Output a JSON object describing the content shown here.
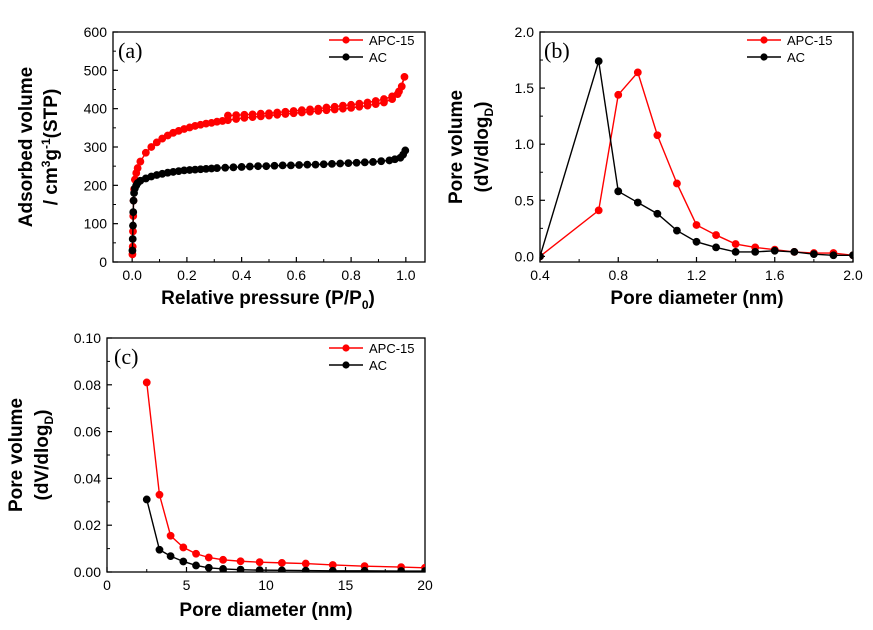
{
  "colors": {
    "APC-15": "#ff0000",
    "AC": "#000000"
  },
  "chart_data": [
    {
      "id": "a",
      "type": "line",
      "panel_label": "(a)",
      "xlabel": "Relative pressure (P/P",
      "xlabel_sub": "0",
      "xlabel_end": ")",
      "ylabel_line1": "Adsorbed volume",
      "ylabel_line2_parts": [
        "/ cm",
        "3",
        "g",
        "-1",
        "(STP)"
      ],
      "xlim": [
        -0.07,
        1.07
      ],
      "ylim": [
        0,
        600
      ],
      "xticks": [
        "0.0",
        "0.2",
        "0.4",
        "0.6",
        "0.8",
        "1.0"
      ],
      "yticks": [
        "0",
        "100",
        "200",
        "300",
        "400",
        "500",
        "600"
      ],
      "legend_position": "top-right",
      "grid": false,
      "series": [
        {
          "name": "APC-15",
          "x": [
            0.001,
            0.002,
            0.003,
            0.004,
            0.005,
            0.007,
            0.01,
            0.015,
            0.02,
            0.03,
            0.05,
            0.07,
            0.09,
            0.11,
            0.13,
            0.15,
            0.17,
            0.19,
            0.21,
            0.23,
            0.25,
            0.27,
            0.29,
            0.31,
            0.33,
            0.35,
            0.38,
            0.41,
            0.44,
            0.47,
            0.5,
            0.53,
            0.56,
            0.59,
            0.62,
            0.65,
            0.68,
            0.71,
            0.74,
            0.77,
            0.8,
            0.83,
            0.86,
            0.89,
            0.92,
            0.95,
            0.97,
            0.985,
            0.995,
            0.975,
            0.95,
            0.92,
            0.89,
            0.86,
            0.83,
            0.8,
            0.77,
            0.74,
            0.71,
            0.68,
            0.65,
            0.62,
            0.59,
            0.56,
            0.53,
            0.5,
            0.47,
            0.44,
            0.41,
            0.38,
            0.35
          ],
          "y": [
            20,
            40,
            80,
            120,
            160,
            190,
            215,
            232,
            245,
            262,
            285,
            300,
            312,
            322,
            330,
            337,
            342,
            347,
            351,
            355,
            358,
            361,
            363,
            366,
            368,
            370,
            373,
            376,
            378,
            380,
            382,
            384,
            386,
            388,
            390,
            392,
            394,
            396,
            398,
            400,
            402,
            405,
            408,
            412,
            416,
            425,
            438,
            458,
            483,
            445,
            432,
            425,
            420,
            416,
            413,
            410,
            408,
            405,
            403,
            400,
            398,
            396,
            394,
            392,
            390,
            388,
            387,
            385,
            384,
            383,
            382
          ]
        },
        {
          "name": "AC",
          "x": [
            0.001,
            0.002,
            0.003,
            0.004,
            0.005,
            0.007,
            0.01,
            0.015,
            0.02,
            0.03,
            0.05,
            0.07,
            0.09,
            0.11,
            0.13,
            0.15,
            0.17,
            0.19,
            0.21,
            0.23,
            0.25,
            0.27,
            0.29,
            0.31,
            0.34,
            0.37,
            0.4,
            0.43,
            0.46,
            0.49,
            0.52,
            0.55,
            0.58,
            0.61,
            0.64,
            0.67,
            0.7,
            0.73,
            0.76,
            0.79,
            0.82,
            0.85,
            0.88,
            0.91,
            0.94,
            0.96,
            0.98,
            0.99,
            0.998
          ],
          "y": [
            30,
            60,
            95,
            130,
            160,
            180,
            192,
            200,
            206,
            212,
            218,
            223,
            227,
            230,
            233,
            235,
            237,
            239,
            240,
            241,
            242,
            243,
            244,
            245,
            246,
            247,
            248,
            249,
            250,
            250,
            251,
            252,
            252,
            253,
            254,
            254,
            255,
            256,
            257,
            258,
            259,
            260,
            261,
            263,
            265,
            268,
            272,
            280,
            291
          ]
        }
      ]
    },
    {
      "id": "b",
      "type": "line",
      "panel_label": "(b)",
      "xlabel": "Pore diameter (nm)",
      "ylabel_line1": "Pore volume",
      "ylabel_line2_parts": [
        "(dV/dlog",
        "D",
        ")"
      ],
      "xlim": [
        0.4,
        2.0
      ],
      "ylim": [
        -0.05,
        2.0
      ],
      "xticks": [
        "0.4",
        "0.8",
        "1.2",
        "1.6",
        "2.0"
      ],
      "yticks": [
        "0.0",
        "0.5",
        "1.0",
        "1.5",
        "2.0"
      ],
      "legend_position": "top-right",
      "grid": false,
      "series": [
        {
          "name": "APC-15",
          "x": [
            0.4,
            0.7,
            0.8,
            0.9,
            1.0,
            1.1,
            1.2,
            1.3,
            1.4,
            1.5,
            1.6,
            1.7,
            1.8,
            1.9,
            2.0
          ],
          "y": [
            0.0,
            0.41,
            1.44,
            1.64,
            1.08,
            0.65,
            0.28,
            0.19,
            0.11,
            0.08,
            0.06,
            0.04,
            0.03,
            0.03,
            0.01
          ]
        },
        {
          "name": "AC",
          "x": [
            0.4,
            0.7,
            0.8,
            0.9,
            1.0,
            1.1,
            1.2,
            1.3,
            1.4,
            1.5,
            1.6,
            1.7,
            1.8,
            1.9,
            2.0
          ],
          "y": [
            0.0,
            1.74,
            0.58,
            0.48,
            0.38,
            0.23,
            0.13,
            0.08,
            0.04,
            0.04,
            0.05,
            0.04,
            0.02,
            0.01,
            0.01
          ]
        }
      ]
    },
    {
      "id": "c",
      "type": "line",
      "panel_label": "(c)",
      "xlabel": "Pore diameter (nm)",
      "ylabel_line1": "Pore volume",
      "ylabel_line2_parts": [
        "(dV/dlog",
        "D",
        ")"
      ],
      "xlim": [
        0,
        20
      ],
      "ylim": [
        0,
        0.1
      ],
      "xticks": [
        "0",
        "5",
        "10",
        "15",
        "20"
      ],
      "yticks": [
        "0.00",
        "0.02",
        "0.04",
        "0.06",
        "0.08",
        "0.10"
      ],
      "legend_position": "top-right",
      "grid": false,
      "series": [
        {
          "name": "APC-15",
          "x": [
            2.5,
            3.3,
            4.0,
            4.8,
            5.6,
            6.4,
            7.3,
            8.4,
            9.6,
            11.0,
            12.5,
            14.2,
            16.2,
            18.5,
            20.0
          ],
          "y": [
            0.081,
            0.033,
            0.0155,
            0.0105,
            0.0078,
            0.0062,
            0.0052,
            0.0046,
            0.0042,
            0.0039,
            0.0036,
            0.003,
            0.0025,
            0.0021,
            0.0018
          ]
        },
        {
          "name": "AC",
          "x": [
            2.5,
            3.3,
            4.0,
            4.8,
            5.6,
            6.4,
            7.3,
            8.4,
            9.6,
            11.0,
            12.5,
            14.2,
            16.2,
            18.5,
            20.0
          ],
          "y": [
            0.031,
            0.0095,
            0.0068,
            0.0045,
            0.0028,
            0.0018,
            0.0013,
            0.001,
            0.0008,
            0.0007,
            0.0006,
            0.0005,
            0.0005,
            0.0004,
            0.0004
          ]
        }
      ]
    }
  ]
}
